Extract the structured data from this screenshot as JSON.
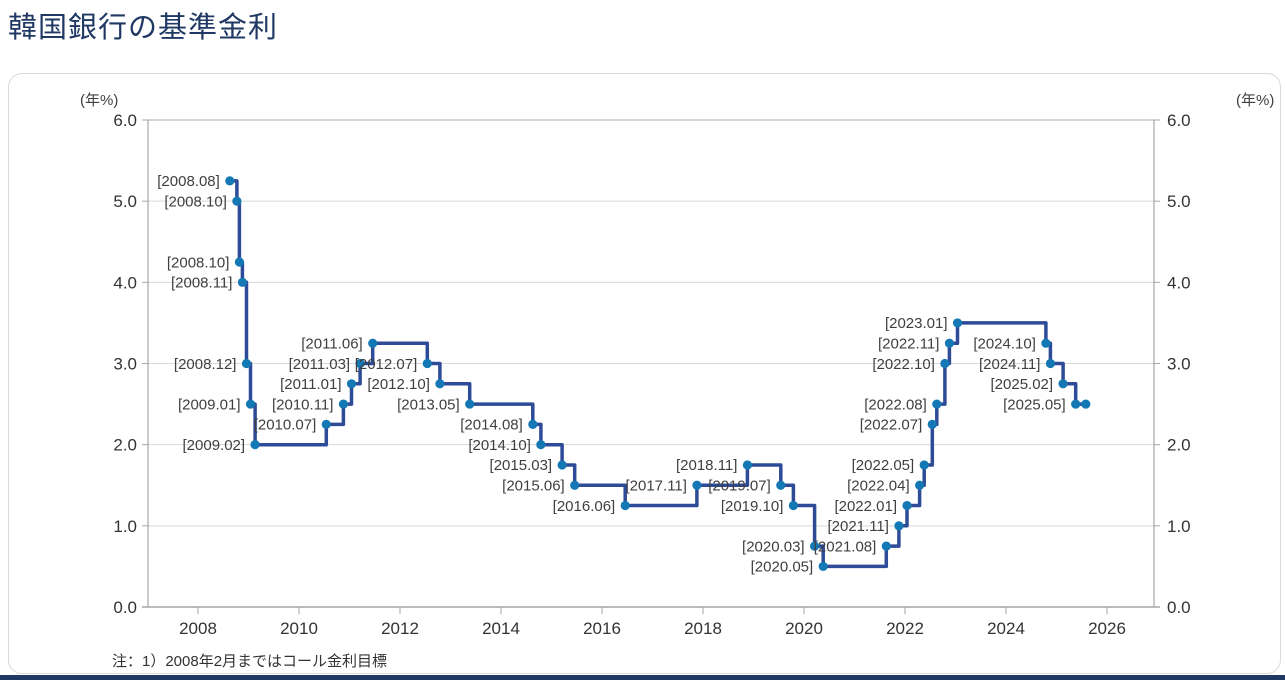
{
  "page": {
    "title": "韓国銀行の基準金利"
  },
  "colors": {
    "title": "#1f3864",
    "line": "#2d4b97",
    "marker": "#1478b4",
    "grid": "#d9d9d9",
    "axis": "#a6a6a6",
    "label_text": "#3f3f3f",
    "tick_text": "#333333",
    "bottom_bar": "#1f3864"
  },
  "chart_data": {
    "type": "line",
    "subtype": "step-after",
    "title": "韓国銀行の基準金利",
    "y_unit_label": "(年%)",
    "note": "注：1）2008年2月まではコール金利目標",
    "ylim": [
      0.0,
      6.0
    ],
    "xlim": [
      2007.0,
      2026.93
    ],
    "grid": true,
    "y_ticks": [
      {
        "v": 0,
        "label": "0.0"
      },
      {
        "v": 1,
        "label": "1.0"
      },
      {
        "v": 2,
        "label": "2.0"
      },
      {
        "v": 3,
        "label": "3.0"
      },
      {
        "v": 4,
        "label": "4.0"
      },
      {
        "v": 5,
        "label": "5.0"
      },
      {
        "v": 6,
        "label": "6.0"
      }
    ],
    "x_ticks": [
      {
        "v": 2008,
        "label": "2008"
      },
      {
        "v": 2010,
        "label": "2010"
      },
      {
        "v": 2012,
        "label": "2012"
      },
      {
        "v": 2014,
        "label": "2014"
      },
      {
        "v": 2016,
        "label": "2016"
      },
      {
        "v": 2018,
        "label": "2018"
      },
      {
        "v": 2020,
        "label": "2020"
      },
      {
        "v": 2022,
        "label": "2022"
      },
      {
        "v": 2024,
        "label": "2024"
      },
      {
        "v": 2026,
        "label": "2026"
      }
    ],
    "series_name": "基準金利",
    "points": [
      {
        "label": "[2008.08]",
        "t": 2008.63,
        "value": 5.25
      },
      {
        "label": "[2008.10]",
        "t": 2008.77,
        "value": 5.0
      },
      {
        "label": "[2008.10]",
        "t": 2008.82,
        "value": 4.25
      },
      {
        "label": "[2008.11]",
        "t": 2008.88,
        "value": 4.0
      },
      {
        "label": "[2008.12]",
        "t": 2008.96,
        "value": 3.0
      },
      {
        "label": "[2009.01]",
        "t": 2009.04,
        "value": 2.5
      },
      {
        "label": "[2009.02]",
        "t": 2009.13,
        "value": 2.0
      },
      {
        "label": "[2010.07]",
        "t": 2010.54,
        "value": 2.25
      },
      {
        "label": "[2010.11]",
        "t": 2010.88,
        "value": 2.5
      },
      {
        "label": "[2011.01]",
        "t": 2011.04,
        "value": 2.75
      },
      {
        "label": "[2011.03]",
        "t": 2011.21,
        "value": 3.0
      },
      {
        "label": "[2011.06]",
        "t": 2011.46,
        "value": 3.25
      },
      {
        "label": "[2012.07]",
        "t": 2012.54,
        "value": 3.0
      },
      {
        "label": "[2012.10]",
        "t": 2012.79,
        "value": 2.75
      },
      {
        "label": "[2013.05]",
        "t": 2013.38,
        "value": 2.5
      },
      {
        "label": "[2014.08]",
        "t": 2014.63,
        "value": 2.25
      },
      {
        "label": "[2014.10]",
        "t": 2014.79,
        "value": 2.0
      },
      {
        "label": "[2015.03]",
        "t": 2015.21,
        "value": 1.75
      },
      {
        "label": "[2015.06]",
        "t": 2015.46,
        "value": 1.5
      },
      {
        "label": "[2016.06]",
        "t": 2016.46,
        "value": 1.25
      },
      {
        "label": "[2017.11]",
        "t": 2017.88,
        "value": 1.5
      },
      {
        "label": "[2018.11]",
        "t": 2018.88,
        "value": 1.75
      },
      {
        "label": "[2019.07]",
        "t": 2019.54,
        "value": 1.5
      },
      {
        "label": "[2019.10]",
        "t": 2019.79,
        "value": 1.25
      },
      {
        "label": "[2020.03]",
        "t": 2020.21,
        "value": 0.75
      },
      {
        "label": "[2020.05]",
        "t": 2020.38,
        "value": 0.5
      },
      {
        "label": "[2021.08]",
        "t": 2021.63,
        "value": 0.75
      },
      {
        "label": "[2021.11]",
        "t": 2021.88,
        "value": 1.0
      },
      {
        "label": "[2022.01]",
        "t": 2022.04,
        "value": 1.25
      },
      {
        "label": "[2022.04]",
        "t": 2022.29,
        "value": 1.5
      },
      {
        "label": "[2022.05]",
        "t": 2022.38,
        "value": 1.75
      },
      {
        "label": "[2022.07]",
        "t": 2022.54,
        "value": 2.25
      },
      {
        "label": "[2022.08]",
        "t": 2022.63,
        "value": 2.5
      },
      {
        "label": "[2022.10]",
        "t": 2022.79,
        "value": 3.0
      },
      {
        "label": "[2022.11]",
        "t": 2022.88,
        "value": 3.25
      },
      {
        "label": "[2023.01]",
        "t": 2023.04,
        "value": 3.5
      },
      {
        "label": "[2024.10]",
        "t": 2024.79,
        "value": 3.25
      },
      {
        "label": "[2024.11]",
        "t": 2024.88,
        "value": 3.0
      },
      {
        "label": "[2025.02]",
        "t": 2025.13,
        "value": 2.75
      },
      {
        "label": "[2025.05]",
        "t": 2025.38,
        "value": 2.5
      },
      {
        "label": "",
        "t": 2025.58,
        "value": 2.5
      }
    ]
  }
}
